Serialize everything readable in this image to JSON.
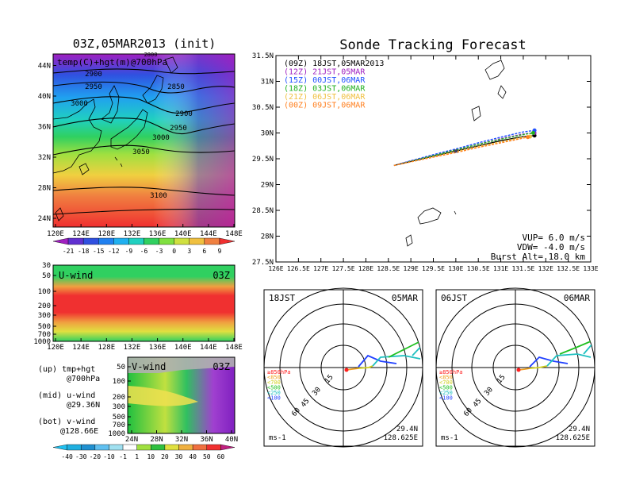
{
  "map_panel": {
    "title": "03Z,05MAR2013 (init)",
    "label": "temp(C)+hgt(m)@700hPa",
    "lon_ticks": [
      "120E",
      "124E",
      "128E",
      "132E",
      "136E",
      "140E",
      "144E",
      "148E"
    ],
    "lat_ticks": [
      "24N",
      "28N",
      "32N",
      "36N",
      "40N",
      "44N"
    ],
    "contour_labels": [
      "2900",
      "2950",
      "3000",
      "2850",
      "2900",
      "2950",
      "3000",
      "3050",
      "3100",
      "2800"
    ],
    "temp_colorbar": [
      "-21",
      "-18",
      "-15",
      "-12",
      "-9",
      "-6",
      "-3",
      "0",
      "3",
      "6",
      "9"
    ]
  },
  "u_panel": {
    "label": "U-wind",
    "time": "03Z",
    "p_ticks": [
      "30",
      "50",
      "100",
      "200",
      "300",
      "500",
      "700",
      "1000"
    ],
    "lon_ticks": [
      "120E",
      "124E",
      "128E",
      "132E",
      "136E",
      "140E",
      "144E",
      "148E"
    ]
  },
  "v_panel": {
    "label": "V-wind",
    "time": "03Z",
    "p_ticks": [
      "50",
      "100",
      "200",
      "300",
      "500",
      "700",
      "1000"
    ],
    "lat_ticks": [
      "24N",
      "28N",
      "32N",
      "36N",
      "40N"
    ]
  },
  "wind_colorbar": [
    "-40",
    "-30",
    "-20",
    "-10",
    "-1",
    "1",
    "10",
    "20",
    "30",
    "40",
    "50",
    "60"
  ],
  "legend_notes": [
    [
      "(up) tmp+hgt",
      "@700hPa"
    ],
    [
      "(mid) u-wind",
      "@29.36N"
    ],
    [
      "(bot) v-wind",
      "@128.66E"
    ]
  ],
  "tracking": {
    "title": "Sonde Tracking Forecast",
    "lat_ticks": [
      "27.5N",
      "28N",
      "28.5N",
      "29N",
      "29.5N",
      "30N",
      "30.5N",
      "31N",
      "31.5N"
    ],
    "lon_ticks": [
      "126E",
      "126.5E",
      "127E",
      "127.5E",
      "128E",
      "128.5E",
      "129E",
      "129.5E",
      "130E",
      "130.5E",
      "131E",
      "131.5E",
      "132E",
      "132.5E",
      "133E"
    ],
    "launches": [
      {
        "text": "(09Z) 18JST,05MAR2013",
        "color": "#000000"
      },
      {
        "text": "(12Z) 21JST,05MAR",
        "color": "#a020c0"
      },
      {
        "text": "(15Z) 00JST,06MAR",
        "color": "#2050ff"
      },
      {
        "text": "(18Z) 03JST,06MAR",
        "color": "#20b020"
      },
      {
        "text": "(21Z) 06JST,06MAR",
        "color": "#f0c040"
      },
      {
        "text": "(00Z) 09JST,06MAR",
        "color": "#ff8020"
      }
    ],
    "params": [
      "VUP= 6.0 m/s",
      "VDW= -4.0 m/s",
      "Burst Alt= 18.0 km"
    ]
  },
  "chart_data": [
    {
      "type": "line",
      "title": "Sonde Tracking Forecast",
      "xlim": [
        126,
        133
      ],
      "ylim": [
        27.5,
        31.5
      ],
      "series": [
        {
          "name": "(09Z) 18JST,05MAR2013",
          "x": [
            128.625,
            129.0,
            129.5,
            130.0,
            130.5,
            131.0,
            131.5,
            131.75
          ],
          "y": [
            29.37,
            29.45,
            29.55,
            29.65,
            29.75,
            29.85,
            29.93,
            29.95
          ]
        },
        {
          "name": "(12Z) 21JST,05MAR",
          "x": [
            128.625,
            129.0,
            129.5,
            130.0,
            130.5,
            131.0,
            131.5,
            131.75
          ],
          "y": [
            29.37,
            29.46,
            29.57,
            29.67,
            29.78,
            29.89,
            29.98,
            30.0
          ]
        },
        {
          "name": "(15Z) 00JST,06MAR",
          "x": [
            128.625,
            129.0,
            129.5,
            130.0,
            130.5,
            131.0,
            131.5,
            131.75
          ],
          "y": [
            29.37,
            29.46,
            29.58,
            29.69,
            29.81,
            29.92,
            30.02,
            30.05
          ]
        },
        {
          "name": "(18Z) 03JST,06MAR",
          "x": [
            128.625,
            129.0,
            129.5,
            130.0,
            130.5,
            131.0,
            131.5,
            131.72
          ],
          "y": [
            29.37,
            29.45,
            29.56,
            29.67,
            29.78,
            29.88,
            29.97,
            30.0
          ]
        },
        {
          "name": "(21Z) 06JST,06MAR",
          "x": [
            128.625,
            129.0,
            129.5,
            130.0,
            130.5,
            131.0,
            131.5,
            131.65
          ],
          "y": [
            29.37,
            29.44,
            29.54,
            29.64,
            29.74,
            29.83,
            29.92,
            29.93
          ]
        },
        {
          "name": "(00Z) 09JST,06MAR",
          "x": [
            128.625,
            129.0,
            129.5,
            130.0,
            130.5,
            131.0,
            131.5,
            131.6
          ],
          "y": [
            29.37,
            29.44,
            29.53,
            29.62,
            29.72,
            29.81,
            29.9,
            29.92
          ]
        }
      ]
    }
  ],
  "hodo_left": {
    "time": "18JST",
    "date": "05MAR",
    "rings": [
      "15",
      "30",
      "45",
      "60"
    ],
    "levels": [
      {
        "text": "≥850hPa",
        "color": "#ff2020"
      },
      {
        "text": "<850",
        "color": "#f0a020"
      },
      {
        "text": "<700",
        "color": "#d0d020"
      },
      {
        "text": "<500",
        "color": "#20c020"
      },
      {
        "text": "<250",
        "color": "#20c0c0"
      },
      {
        "text": "<100",
        "color": "#2040ff"
      }
    ],
    "units": "ms-1",
    "loc_lat": "29.4N",
    "loc_lon": "128.625E"
  },
  "hodo_right": {
    "time": "06JST",
    "date": "06MAR",
    "rings": [
      "15",
      "30",
      "45",
      "60"
    ],
    "levels": [
      {
        "text": "≥850hPa",
        "color": "#ff2020"
      },
      {
        "text": "<850",
        "color": "#f0a020"
      },
      {
        "text": "<700",
        "color": "#d0d020"
      },
      {
        "text": "<500",
        "color": "#20c020"
      },
      {
        "text": "<250",
        "color": "#20c0c0"
      },
      {
        "text": "<100",
        "color": "#2040ff"
      }
    ],
    "units": "ms-1",
    "loc_lat": "29.4N",
    "loc_lon": "128.625E"
  }
}
